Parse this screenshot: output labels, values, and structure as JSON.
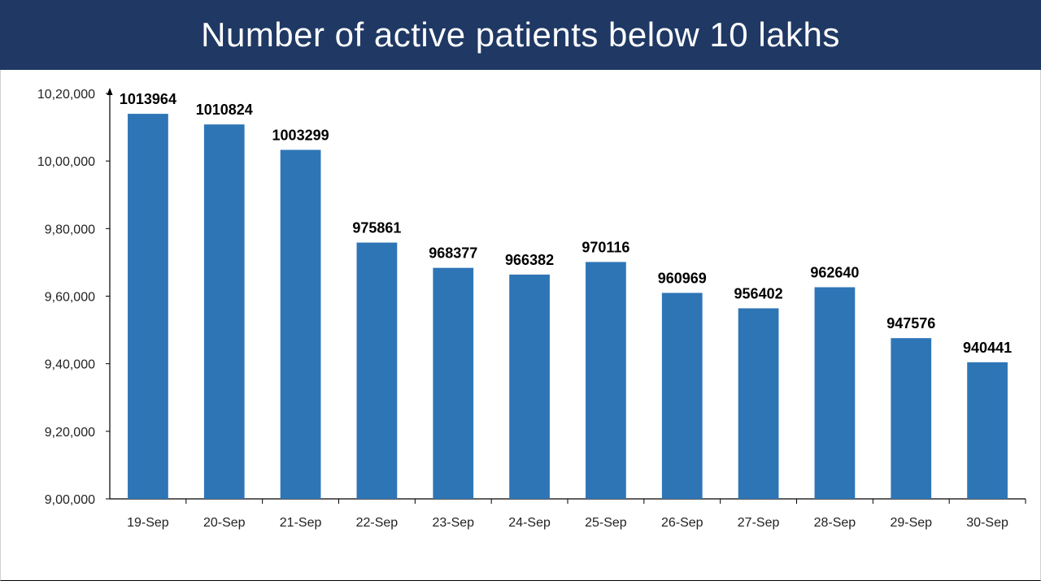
{
  "header": {
    "title": "Number of active patients below 10 lakhs"
  },
  "colors": {
    "header_bg": "#1f3864",
    "bar": "#2e75b6",
    "axis": "#000000"
  },
  "chart_data": {
    "type": "bar",
    "title": "Number of active patients below 10 lakhs",
    "categories": [
      "19-Sep",
      "20-Sep",
      "21-Sep",
      "22-Sep",
      "23-Sep",
      "24-Sep",
      "25-Sep",
      "26-Sep",
      "27-Sep",
      "28-Sep",
      "29-Sep",
      "30-Sep"
    ],
    "values": [
      1013964,
      1010824,
      1003299,
      975861,
      968377,
      966382,
      970116,
      960969,
      956402,
      962640,
      947576,
      940441
    ],
    "data_labels": [
      "1013964",
      "1010824",
      "1003299",
      "975861",
      "968377",
      "966382",
      "970116",
      "960969",
      "956402",
      "962640",
      "947576",
      "940441"
    ],
    "ylim": [
      900000,
      1020000
    ],
    "yticks": [
      900000,
      920000,
      940000,
      960000,
      980000,
      1000000,
      1020000
    ],
    "ytick_labels": [
      "9,00,000",
      "9,20,000",
      "9,40,000",
      "9,60,000",
      "9,80,000",
      "10,00,000",
      "10,20,000"
    ],
    "xlabel": "",
    "ylabel": "",
    "grid": false,
    "legend": "none"
  }
}
